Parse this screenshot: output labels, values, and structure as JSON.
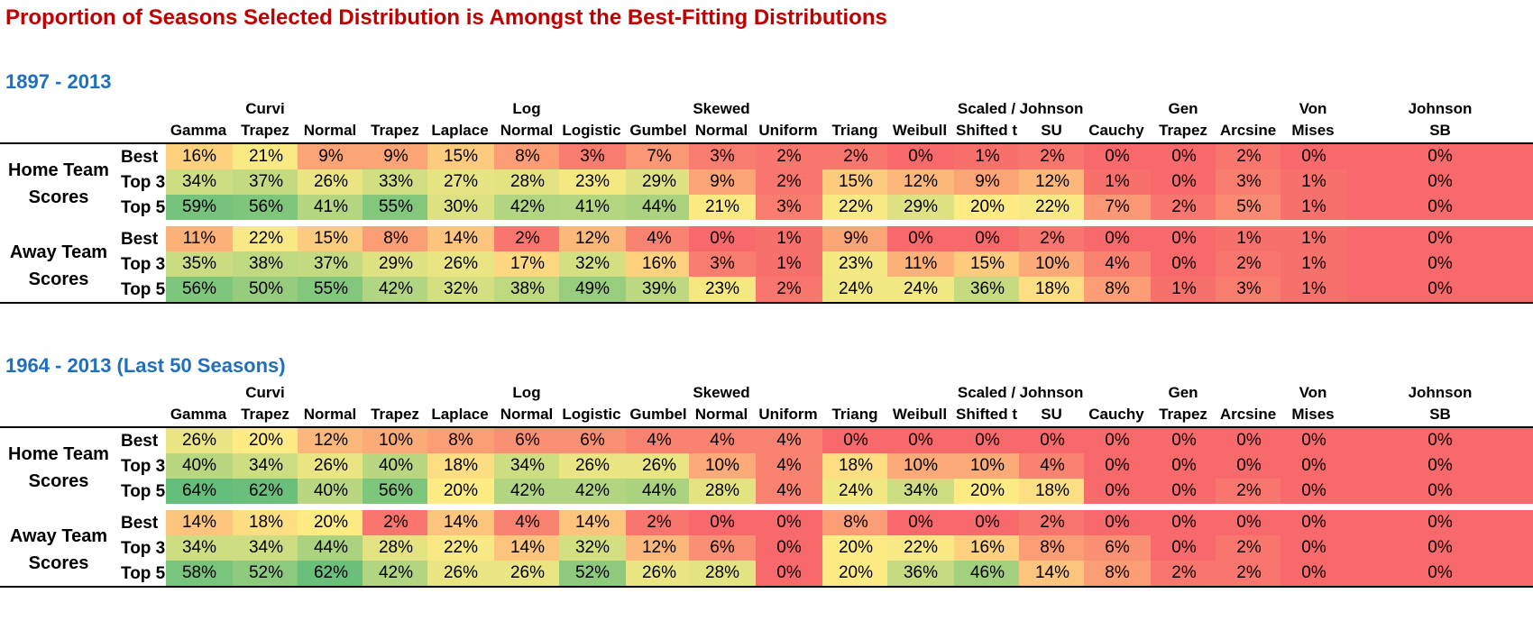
{
  "title": "Proportion of Seasons Selected Distribution is Amongst the Best-Fitting Distributions",
  "chart_data": {
    "type": "table",
    "columns": [
      {
        "line1": "",
        "line2": "Gamma"
      },
      {
        "line1": "Curvi",
        "line2": "Trapez"
      },
      {
        "line1": "",
        "line2": "Normal"
      },
      {
        "line1": "",
        "line2": "Trapez"
      },
      {
        "line1": "",
        "line2": "Laplace"
      },
      {
        "line1": "Log",
        "line2": "Normal"
      },
      {
        "line1": "",
        "line2": "Logistic"
      },
      {
        "line1": "",
        "line2": "Gumbel"
      },
      {
        "line1": "Skewed",
        "line2": "Normal"
      },
      {
        "line1": "",
        "line2": "Uniform"
      },
      {
        "line1": "",
        "line2": "Triang"
      },
      {
        "line1": "",
        "line2": "Weibull"
      },
      {
        "line1": "Scaled /",
        "line2": "Shifted t"
      },
      {
        "line1": "Johnson",
        "line2": "SU"
      },
      {
        "line1": "",
        "line2": "Cauchy"
      },
      {
        "line1": "Gen",
        "line2": "Trapez"
      },
      {
        "line1": "",
        "line2": "Arcsine"
      },
      {
        "line1": "Von",
        "line2": "Mises"
      },
      {
        "line1": "Johnson",
        "line2": "SB"
      }
    ],
    "sections": [
      {
        "title": "1897 - 2013",
        "groups": [
          {
            "label1": "Home Team",
            "label2": "Scores",
            "rows": [
              {
                "label": "Best",
                "values": [
                  16,
                  21,
                  9,
                  9,
                  15,
                  8,
                  3,
                  7,
                  3,
                  2,
                  2,
                  0,
                  1,
                  2,
                  0,
                  0,
                  2,
                  0,
                  0
                ]
              },
              {
                "label": "Top 3",
                "values": [
                  34,
                  37,
                  26,
                  33,
                  27,
                  28,
                  23,
                  29,
                  9,
                  2,
                  15,
                  12,
                  9,
                  12,
                  1,
                  0,
                  3,
                  1,
                  0
                ]
              },
              {
                "label": "Top 5",
                "values": [
                  59,
                  56,
                  41,
                  55,
                  30,
                  42,
                  41,
                  44,
                  21,
                  3,
                  22,
                  29,
                  20,
                  22,
                  7,
                  2,
                  5,
                  1,
                  0
                ]
              }
            ]
          },
          {
            "label1": "Away Team",
            "label2": "Scores",
            "rows": [
              {
                "label": "Best",
                "values": [
                  11,
                  22,
                  15,
                  8,
                  14,
                  2,
                  12,
                  4,
                  0,
                  1,
                  9,
                  0,
                  0,
                  2,
                  0,
                  0,
                  1,
                  1,
                  0
                ]
              },
              {
                "label": "Top 3",
                "values": [
                  35,
                  38,
                  37,
                  29,
                  26,
                  17,
                  32,
                  16,
                  3,
                  1,
                  23,
                  11,
                  15,
                  10,
                  4,
                  0,
                  2,
                  1,
                  0
                ]
              },
              {
                "label": "Top 5",
                "values": [
                  56,
                  50,
                  55,
                  42,
                  32,
                  38,
                  49,
                  39,
                  23,
                  2,
                  24,
                  24,
                  36,
                  18,
                  8,
                  1,
                  3,
                  1,
                  0
                ]
              }
            ]
          }
        ]
      },
      {
        "title": "1964 - 2013 (Last 50 Seasons)",
        "groups": [
          {
            "label1": "Home Team",
            "label2": "Scores",
            "rows": [
              {
                "label": "Best",
                "values": [
                  26,
                  20,
                  12,
                  10,
                  8,
                  6,
                  6,
                  4,
                  4,
                  4,
                  0,
                  0,
                  0,
                  0,
                  0,
                  0,
                  0,
                  0,
                  0
                ]
              },
              {
                "label": "Top 3",
                "values": [
                  40,
                  34,
                  26,
                  40,
                  18,
                  34,
                  26,
                  26,
                  10,
                  4,
                  18,
                  10,
                  10,
                  4,
                  0,
                  0,
                  0,
                  0,
                  0
                ]
              },
              {
                "label": "Top 5",
                "values": [
                  64,
                  62,
                  40,
                  56,
                  20,
                  42,
                  42,
                  44,
                  28,
                  4,
                  24,
                  34,
                  20,
                  18,
                  0,
                  0,
                  2,
                  0,
                  0
                ]
              }
            ]
          },
          {
            "label1": "Away Team",
            "label2": "Scores",
            "rows": [
              {
                "label": "Best",
                "values": [
                  14,
                  18,
                  20,
                  2,
                  14,
                  4,
                  14,
                  2,
                  0,
                  0,
                  8,
                  0,
                  0,
                  2,
                  0,
                  0,
                  0,
                  0,
                  0
                ]
              },
              {
                "label": "Top 3",
                "values": [
                  34,
                  34,
                  44,
                  28,
                  22,
                  14,
                  32,
                  12,
                  6,
                  0,
                  20,
                  22,
                  16,
                  8,
                  6,
                  0,
                  2,
                  0,
                  0
                ]
              },
              {
                "label": "Top 5",
                "values": [
                  58,
                  52,
                  62,
                  42,
                  26,
                  26,
                  52,
                  26,
                  28,
                  0,
                  20,
                  36,
                  46,
                  14,
                  8,
                  2,
                  2,
                  0,
                  0
                ]
              }
            ]
          }
        ]
      }
    ],
    "unit": "%"
  }
}
